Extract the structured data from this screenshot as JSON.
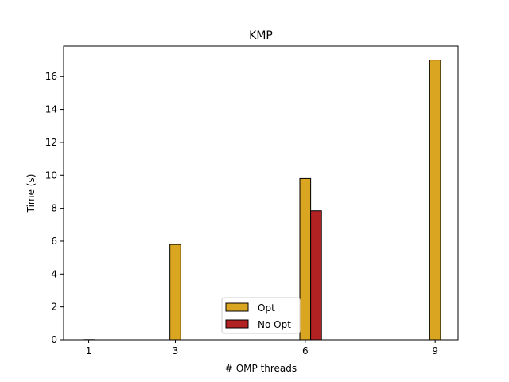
{
  "chart_data": {
    "type": "bar",
    "title": "KMP",
    "xlabel": "# OMP threads",
    "ylabel": "Time (s)",
    "x": [
      1,
      3,
      6,
      9
    ],
    "x_tick_labels": [
      "1",
      "3",
      "6",
      "9"
    ],
    "xlim": [
      0.42,
      9.53
    ],
    "ylim": [
      0,
      17.85
    ],
    "y_ticks": [
      0,
      2,
      4,
      6,
      8,
      10,
      12,
      14,
      16
    ],
    "y_tick_labels": [
      "0",
      "2",
      "4",
      "6",
      "8",
      "10",
      "12",
      "14",
      "16"
    ],
    "bar_width": 0.25,
    "series": [
      {
        "name": "Opt",
        "values": [
          0.01,
          5.8,
          9.8,
          17.0
        ],
        "color": "#DAA520",
        "offset": 0
      },
      {
        "name": "No Opt",
        "values": [
          0,
          0,
          7.85,
          0
        ],
        "color": "#B22222",
        "offset": 0.25
      }
    ],
    "legend": {
      "position": "bottom-center"
    },
    "grid": false
  }
}
